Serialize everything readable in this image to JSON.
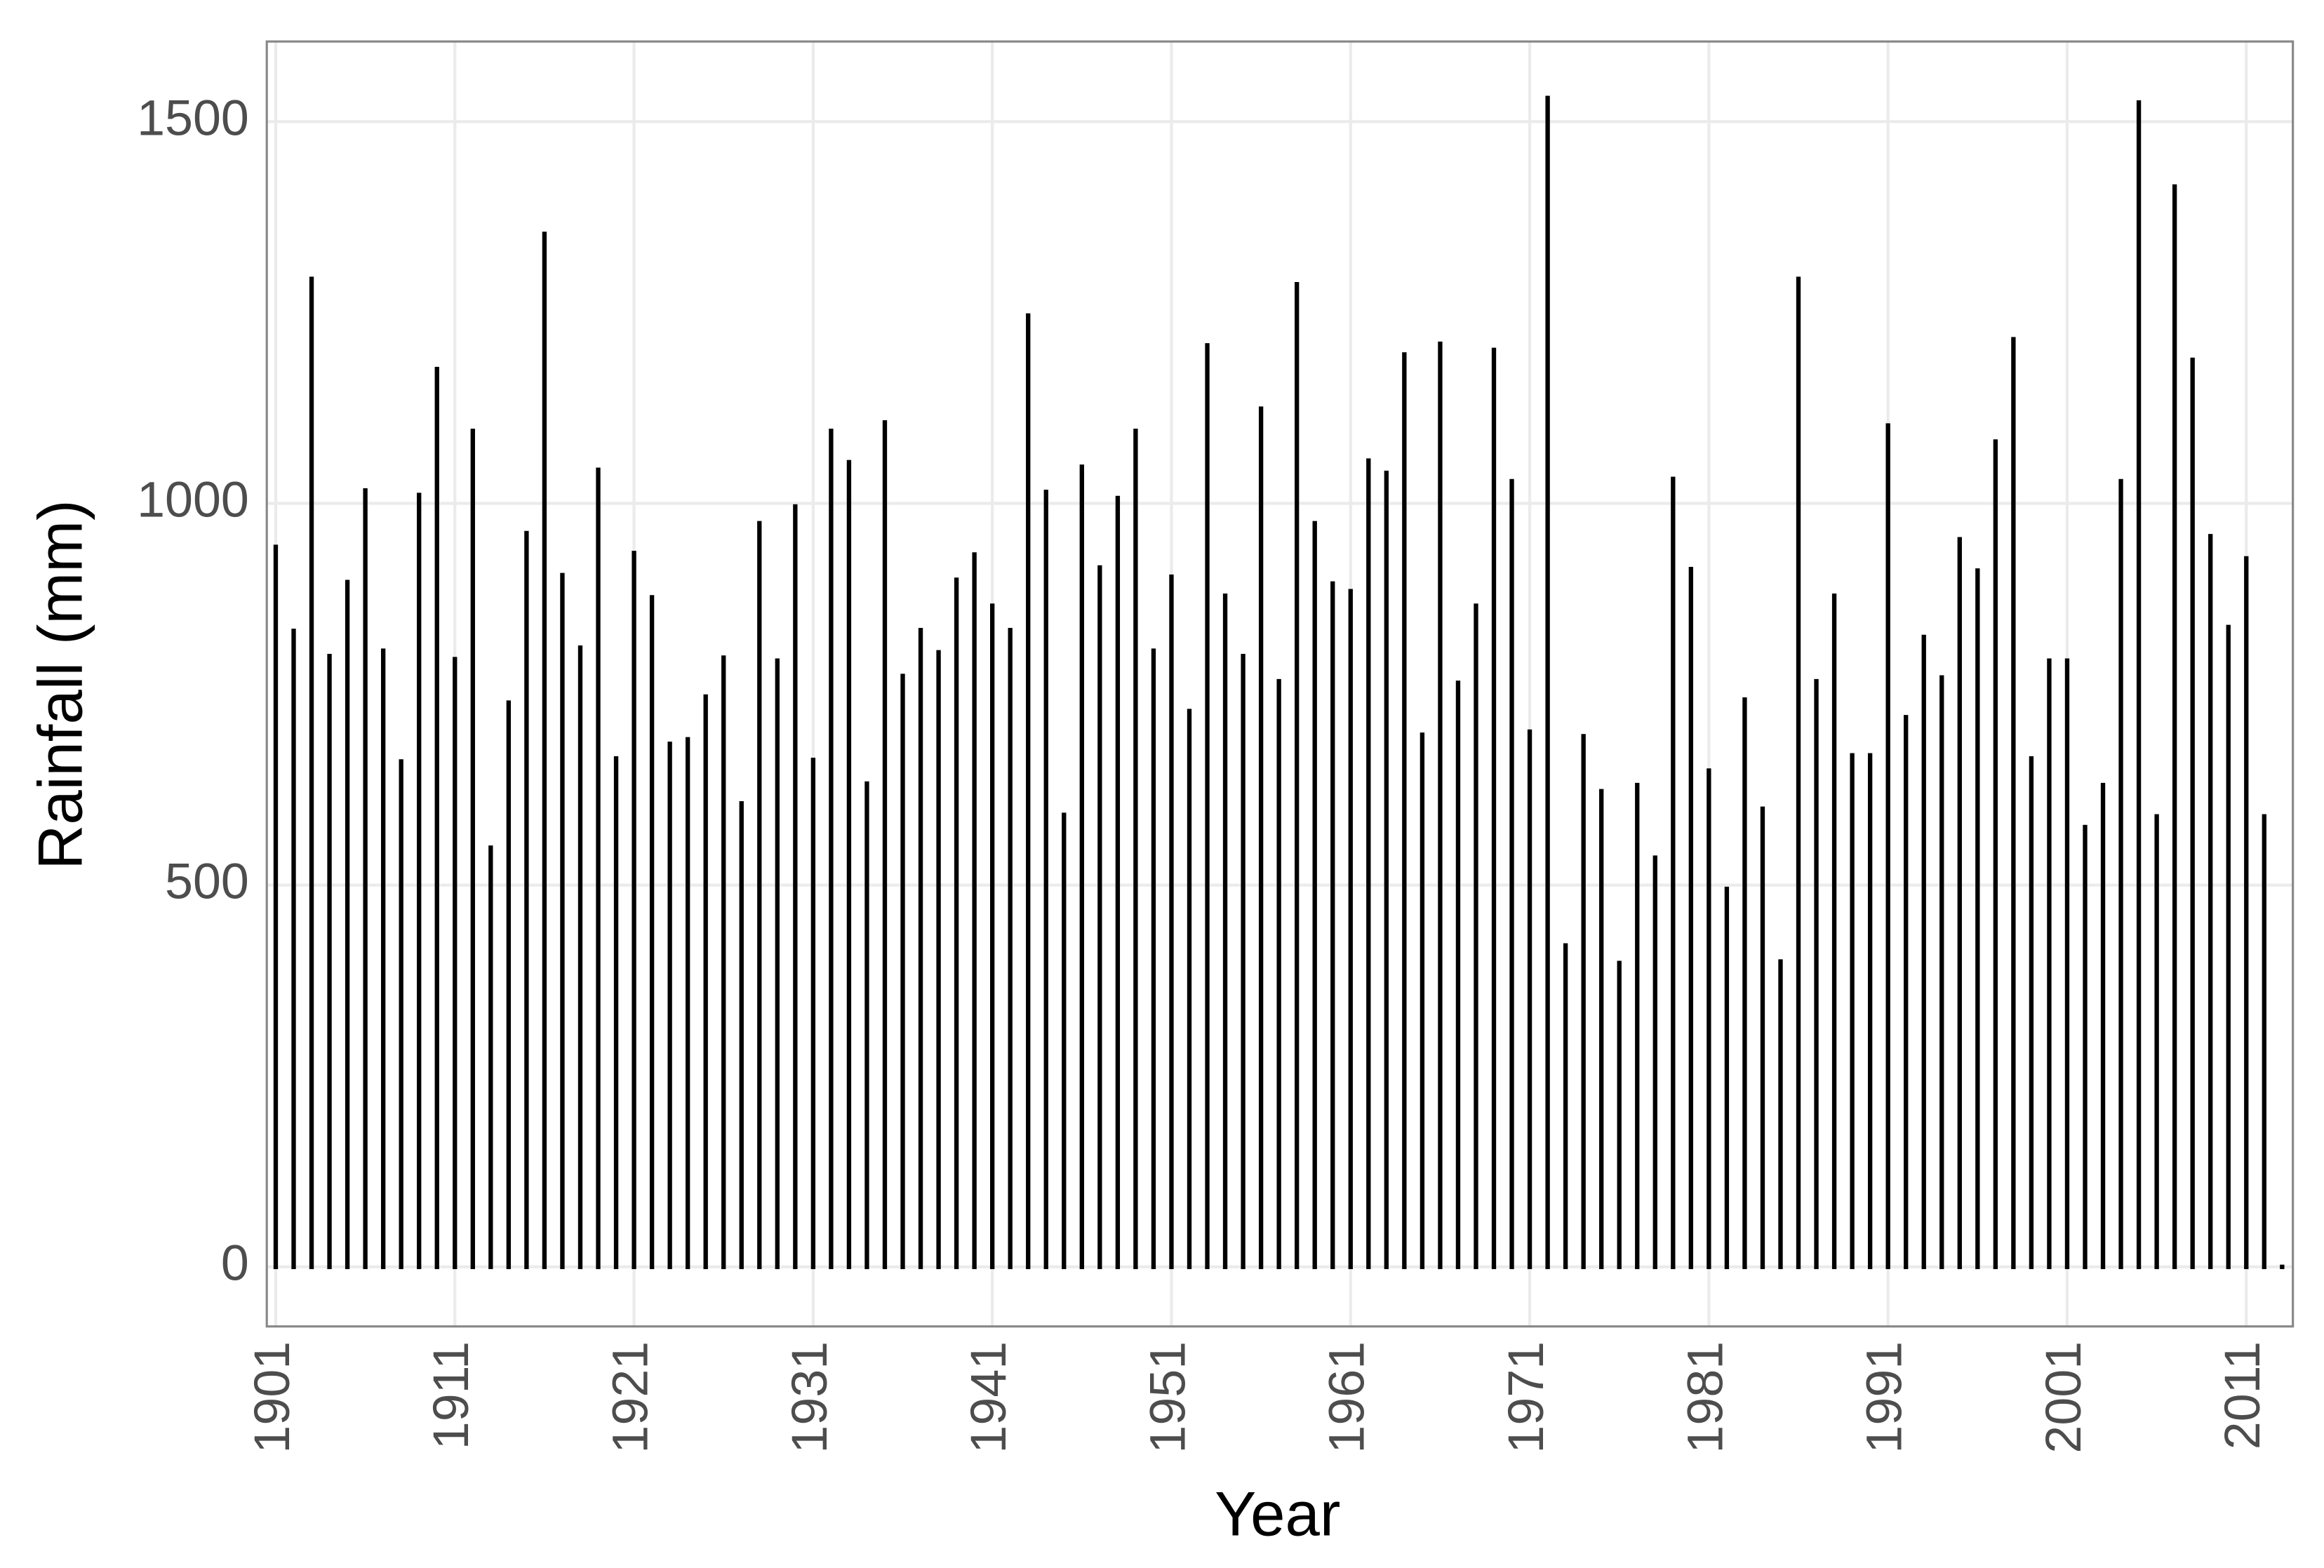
{
  "chart_data": {
    "type": "bar",
    "x_label": "Year",
    "y_label": "Rainfall (mm)",
    "x": [
      1901,
      1902,
      1903,
      1904,
      1905,
      1906,
      1907,
      1908,
      1909,
      1910,
      1911,
      1912,
      1913,
      1914,
      1915,
      1916,
      1917,
      1918,
      1919,
      1920,
      1921,
      1922,
      1923,
      1924,
      1925,
      1926,
      1927,
      1928,
      1929,
      1930,
      1931,
      1932,
      1933,
      1934,
      1935,
      1936,
      1937,
      1938,
      1939,
      1940,
      1941,
      1942,
      1943,
      1944,
      1945,
      1946,
      1947,
      1948,
      1949,
      1950,
      1951,
      1952,
      1953,
      1954,
      1955,
      1956,
      1957,
      1958,
      1959,
      1960,
      1961,
      1962,
      1963,
      1964,
      1965,
      1966,
      1967,
      1968,
      1969,
      1970,
      1971,
      1972,
      1973,
      1974,
      1975,
      1976,
      1977,
      1978,
      1979,
      1980,
      1981,
      1982,
      1983,
      1984,
      1985,
      1986,
      1987,
      1988,
      1989,
      1990,
      1991,
      1992,
      1993,
      1994,
      1995,
      1996,
      1997,
      1998,
      1999,
      2000,
      2001,
      2002,
      2003,
      2004,
      2005,
      2006,
      2007,
      2008,
      2009,
      2010,
      2011,
      2012,
      2013
    ],
    "values": [
      943,
      833,
      1294,
      800,
      897,
      1017,
      807,
      662,
      1011,
      1176,
      796,
      1095,
      549,
      739,
      961,
      1353,
      906,
      811,
      1044,
      666,
      935,
      877,
      685,
      691,
      747,
      798,
      607,
      974,
      794,
      996,
      664,
      1095,
      1054,
      633,
      1106,
      774,
      834,
      805,
      900,
      933,
      866,
      834,
      1246,
      1015,
      592,
      1048,
      916,
      1007,
      1095,
      807,
      904,
      728,
      1207,
      879,
      800,
      1124,
      767,
      1287,
      974,
      895,
      885,
      1056,
      1040,
      1195,
      697,
      1209,
      765,
      866,
      1201,
      1029,
      701,
      1531,
      421,
      695,
      623,
      398,
      631,
      536,
      1032,
      914,
      650,
      495,
      743,
      600,
      400,
      1294,
      767,
      879,
      670,
      670,
      1102,
      720,
      825,
      772,
      953,
      912,
      1081,
      1215,
      666,
      794,
      794,
      576,
      631,
      1029,
      1525,
      590,
      1415,
      1188,
      957,
      838,
      928,
      590,
      0
    ],
    "color": "#000000",
    "xlim": [
      1900.5,
      2013.6
    ],
    "xticks": [
      1901,
      1911,
      1921,
      1931,
      1941,
      1951,
      1961,
      1971,
      1981,
      1991,
      2001,
      2011
    ],
    "ylim": [
      -78,
      1605
    ],
    "yticks": [
      0,
      500,
      1000,
      1500
    ],
    "grid": true
  }
}
